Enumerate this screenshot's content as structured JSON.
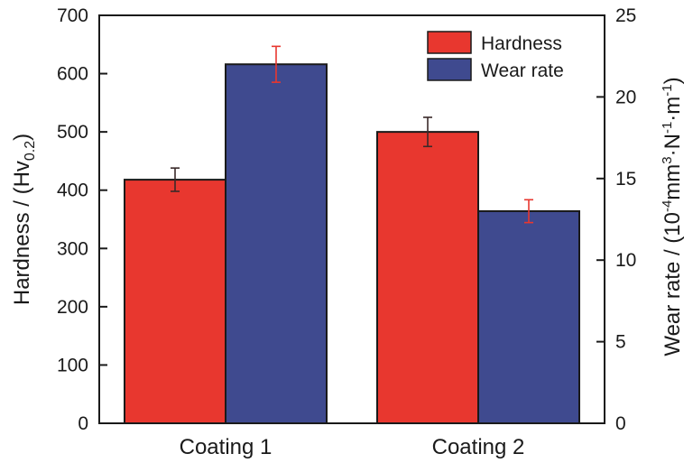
{
  "chart_data": {
    "type": "bar",
    "categories": [
      "Coating 1",
      "Coating 2"
    ],
    "series": [
      {
        "name": "Hardness",
        "axis": "left",
        "color": "#e8372f",
        "values": [
          418,
          500
        ],
        "errors": [
          20,
          25
        ],
        "error_color": "#3a2a2a"
      },
      {
        "name": "Wear rate",
        "axis": "right",
        "color": "#3f4a8f",
        "values": [
          22.0,
          13.0
        ],
        "errors": [
          1.1,
          0.7
        ],
        "error_color": "#e8372f"
      }
    ],
    "left_axis": {
      "ylim": [
        0,
        700
      ],
      "ticks": [
        "0",
        "100",
        "200",
        "300",
        "400",
        "500",
        "600",
        "700"
      ],
      "label_main": "Hardness / (Hv",
      "label_sub": "0.2",
      "label_end": ")"
    },
    "right_axis": {
      "ylim": [
        0,
        25
      ],
      "ticks": [
        "0",
        "5",
        "10",
        "15",
        "20",
        "25"
      ],
      "label_main": "Wear rate / (10",
      "label_sup1": "-4",
      "label_mid1": "mm",
      "label_sup2": "3",
      "label_mid2": "·N",
      "label_sup3": "-1",
      "label_mid3": "·m",
      "label_sup4": "-1",
      "label_end": ")"
    },
    "legend": {
      "position": "top-right"
    },
    "grid": false
  }
}
